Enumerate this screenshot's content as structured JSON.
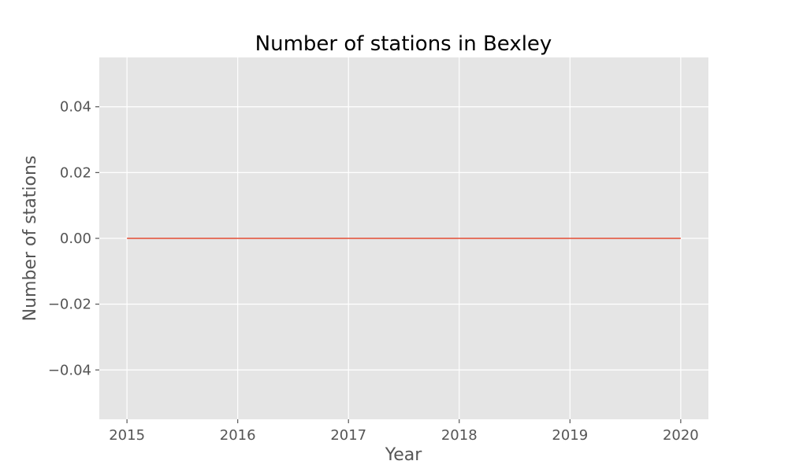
{
  "chart_data": {
    "type": "line",
    "title": "Number of stations in Bexley",
    "xlabel": "Year",
    "ylabel": "Number of stations",
    "x": [
      2015,
      2016,
      2017,
      2018,
      2019,
      2020
    ],
    "series": [
      {
        "values": [
          0,
          0,
          0,
          0,
          0,
          0
        ],
        "color": "#E24A33"
      }
    ],
    "xlim": [
      2014.75,
      2020.25
    ],
    "ylim": [
      -0.055,
      0.055
    ],
    "xticks": [
      2015,
      2016,
      2017,
      2018,
      2019,
      2020
    ],
    "yticks": [
      0.04,
      0.02,
      0.0,
      -0.02,
      -0.04
    ],
    "ytick_labels": [
      "0.04",
      "0.02",
      "0.00",
      "−0.02",
      "−0.04"
    ],
    "grid": true,
    "style": "ggplot",
    "colors": {
      "plot_background": "#E5E5E5",
      "grid": "#FFFFFF",
      "tick": "#555555"
    }
  }
}
